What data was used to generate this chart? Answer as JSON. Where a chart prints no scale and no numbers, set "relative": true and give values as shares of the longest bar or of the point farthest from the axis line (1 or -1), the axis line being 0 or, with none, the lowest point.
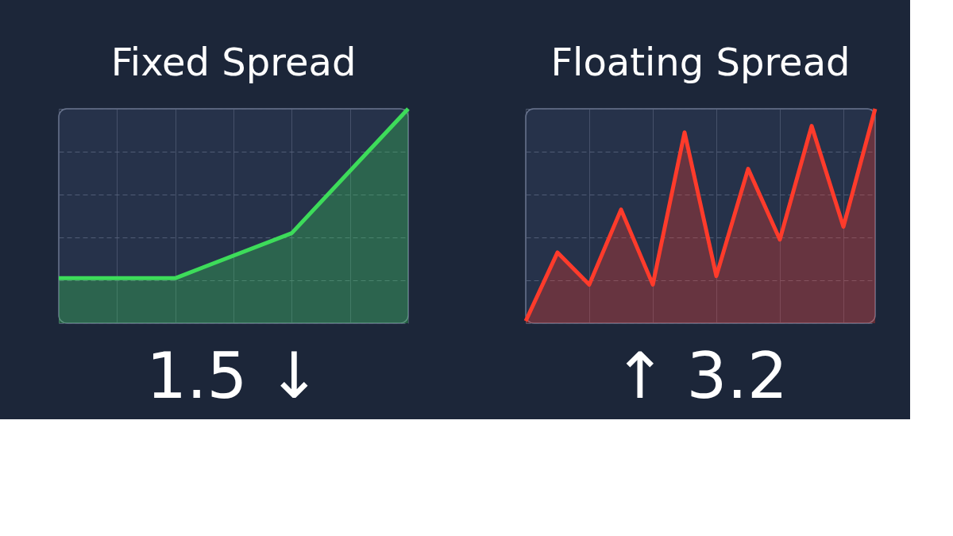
{
  "chart_data": [
    {
      "type": "area",
      "title": "Fixed Spread",
      "relative": true,
      "grid": true,
      "tick_labels": false,
      "categories": [
        null,
        null,
        null,
        null
      ],
      "series": [
        {
          "color": "#3ddc5a",
          "values": [
            0.21,
            0.21,
            0.42,
            1.0
          ]
        }
      ],
      "annotations": [
        "1.5 ↓"
      ]
    },
    {
      "type": "area",
      "title": "Floating Spread",
      "relative": true,
      "grid": true,
      "tick_labels": false,
      "categories": [
        null,
        null,
        null,
        null,
        null,
        null,
        null,
        null,
        null,
        null,
        null,
        null
      ],
      "series": [
        {
          "color": "#ff3b2b",
          "values": [
            0.01,
            0.33,
            0.18,
            0.53,
            0.18,
            0.89,
            0.22,
            0.72,
            0.39,
            0.92,
            0.45,
            1.0
          ]
        }
      ],
      "annotations": [
        "↑ 3.2"
      ]
    }
  ]
}
